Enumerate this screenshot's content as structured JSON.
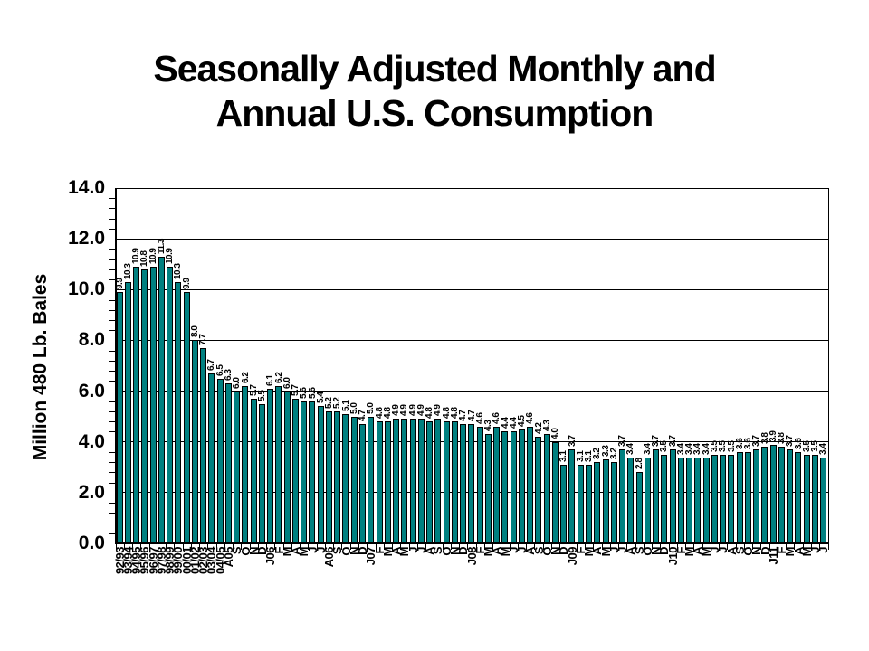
{
  "title": {
    "line1": "Seasonally Adjusted Monthly and",
    "line2": "Annual U.S. Consumption"
  },
  "chart_data": {
    "type": "bar",
    "title": "Seasonally Adjusted Monthly and Annual U.S. Consumption",
    "xlabel": "",
    "ylabel": "Million 480 Lb. Bales",
    "ylim": [
      0.0,
      14.0
    ],
    "ytick_step": 2.0,
    "yminor_step": 0.4,
    "ytick_labels": [
      "0.0",
      "2.0",
      "4.0",
      "6.0",
      "8.0",
      "10.0",
      "12.0",
      "14.0"
    ],
    "grid": true,
    "legend": "none",
    "bar_color": "#008080",
    "bar_border_color": "#000000",
    "value_labels_shown": true,
    "categories": [
      "92/93",
      "93/94",
      "94/95",
      "95/96",
      "96/97",
      "97/98",
      "98/99",
      "99/00",
      "00/01",
      "01/02",
      "02/03",
      "03/04",
      "04/05",
      "A05",
      "S",
      "O",
      "N",
      "D",
      "J06",
      "F",
      "M",
      "A",
      "M",
      "J",
      "J",
      "A06",
      "S",
      "O",
      "N",
      "D",
      "J07",
      "F",
      "M",
      "A",
      "M",
      "J",
      "J",
      "A",
      "S",
      "O",
      "N",
      "D",
      "J08",
      "F",
      "M",
      "A",
      "M",
      "J",
      "J",
      "A",
      "S",
      "O",
      "N",
      "D",
      "J09",
      "F",
      "M",
      "A",
      "M",
      "J",
      "J",
      "A",
      "S",
      "O",
      "N",
      "D",
      "J10",
      "F",
      "M",
      "A",
      "M",
      "J",
      "J",
      "A",
      "S",
      "O",
      "N",
      "D",
      "J11",
      "F",
      "M",
      "A",
      "M",
      "J",
      "J"
    ],
    "values": [
      9.9,
      10.3,
      10.9,
      10.8,
      10.9,
      11.3,
      10.9,
      10.3,
      9.9,
      8.0,
      7.7,
      6.7,
      6.5,
      6.3,
      6.0,
      6.2,
      5.7,
      5.5,
      6.1,
      6.2,
      6.0,
      5.7,
      5.6,
      5.6,
      5.4,
      5.2,
      5.2,
      5.1,
      5.0,
      4.7,
      5.0,
      4.8,
      4.8,
      4.9,
      4.9,
      4.9,
      4.9,
      4.8,
      4.9,
      4.8,
      4.8,
      4.7,
      4.7,
      4.6,
      4.3,
      4.6,
      4.4,
      4.4,
      4.5,
      4.6,
      4.2,
      4.3,
      4.0,
      3.1,
      3.7,
      3.1,
      3.1,
      3.2,
      3.3,
      3.2,
      3.7,
      3.4,
      2.8,
      3.4,
      3.7,
      3.5,
      3.7,
      3.4,
      3.4,
      3.4,
      3.4,
      3.5,
      3.5,
      3.5,
      3.6,
      3.6,
      3.7,
      3.8,
      3.9,
      3.8,
      3.7,
      3.6,
      3.5,
      3.5,
      3.4
    ]
  }
}
